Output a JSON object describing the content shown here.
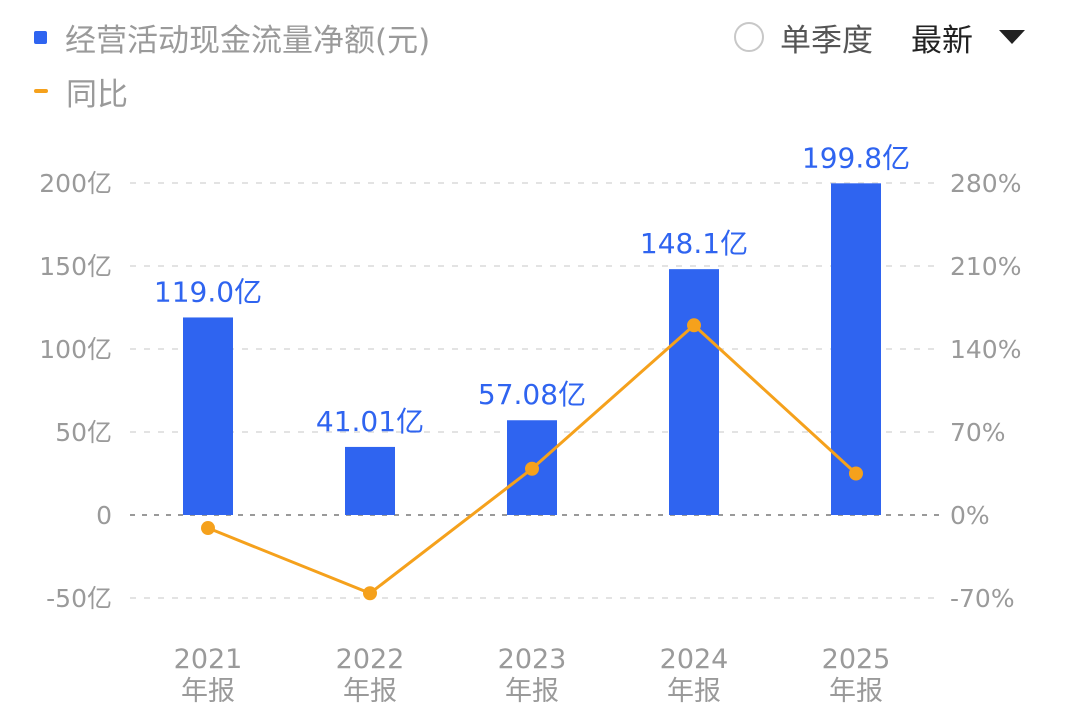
{
  "legend": {
    "bar_label": "经营活动现金流量净额(元)",
    "line_label": "同比"
  },
  "controls": {
    "single_quarter_label": "单季度",
    "sort_label": "最新"
  },
  "colors": {
    "bar": "#2f64f0",
    "line": "#f5a11c",
    "grid": "#e3e3e3",
    "zero_line": "#9a9a9a",
    "tick_text": "#9a9a9a"
  },
  "chart_data": {
    "type": "bar",
    "categories": [
      "2021\n年报",
      "2022\n年报",
      "2023\n年报",
      "2024\n年报",
      "2025\n年报"
    ],
    "x_label_lines": [
      [
        "2021",
        "年报"
      ],
      [
        "2022",
        "年报"
      ],
      [
        "2023",
        "年报"
      ],
      [
        "2024",
        "年报"
      ],
      [
        "2025",
        "年报"
      ]
    ],
    "series": [
      {
        "name": "经营活动现金流量净额(元)",
        "type": "bar",
        "axis": "left",
        "values": [
          119.0,
          41.01,
          57.08,
          148.1,
          199.8
        ],
        "data_labels": [
          "119.0亿",
          "41.01亿",
          "57.08亿",
          "148.1亿",
          "199.8亿"
        ]
      },
      {
        "name": "同比",
        "type": "line",
        "axis": "right",
        "values": [
          -11,
          -66,
          39,
          160,
          35
        ]
      }
    ],
    "left_axis": {
      "ylim": [
        -50,
        200
      ],
      "ticks": [
        200,
        150,
        100,
        50,
        0,
        -50
      ],
      "tick_labels": [
        "200亿",
        "150亿",
        "100亿",
        "50亿",
        "0",
        "-50亿"
      ]
    },
    "right_axis": {
      "ylim": [
        -70,
        280
      ],
      "ticks": [
        280,
        210,
        140,
        70,
        0,
        -70
      ],
      "tick_labels": [
        "280%",
        "210%",
        "140%",
        "70%",
        "0%",
        "-70%"
      ]
    },
    "grid": true,
    "legend_position": "top-left"
  }
}
